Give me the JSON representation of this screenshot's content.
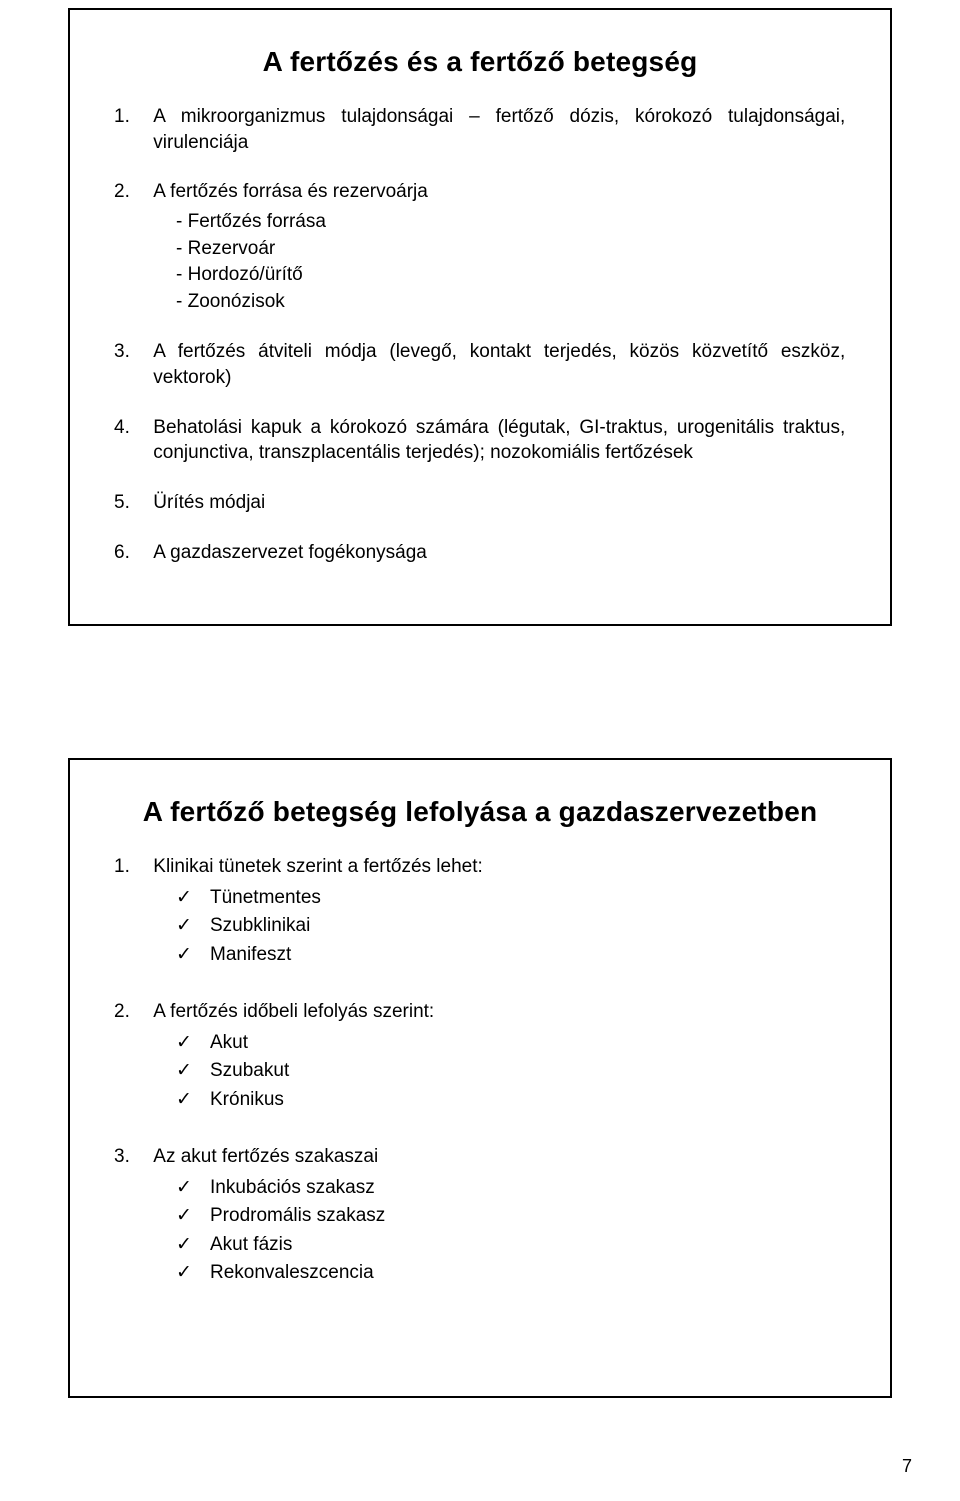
{
  "page_number": "7",
  "top": {
    "title": "A fertőzés és a fertőző betegség",
    "items": [
      {
        "num": "1.",
        "text": "A mikroorganizmus tulajdonságai – fertőző dózis, kórokozó tulajdonságai, virulenciája"
      },
      {
        "num": "2.",
        "text": "A fertőzés forrása és rezervoárja",
        "sub": [
          "Fertőzés forrása",
          "Rezervoár",
          "Hordozó/ürítő",
          "Zoonózisok"
        ]
      },
      {
        "num": "3.",
        "text": "A fertőzés átviteli módja (levegő, kontakt terjedés, közös közvetítő eszköz, vektorok)"
      },
      {
        "num": "4.",
        "text": "Behatolási kapuk a kórokozó számára (légutak, GI-traktus, urogenitális traktus, conjunctiva, transzplacentális terjedés); nozokomiális fertőzések"
      },
      {
        "num": "5.",
        "text": "Ürítés módjai"
      },
      {
        "num": "6.",
        "text": "A gazdaszervezet fogékonysága"
      }
    ]
  },
  "bottom": {
    "title": "A fertőző betegség lefolyása a gazdaszervezetben",
    "items": [
      {
        "num": "1.",
        "text": "Klinikai tünetek szerint a fertőzés lehet:",
        "sub": [
          "Tünetmentes",
          "Szubklinikai",
          "Manifeszt"
        ]
      },
      {
        "num": "2.",
        "text": "A fertőzés időbeli lefolyás szerint:",
        "sub": [
          "Akut",
          "Szubakut",
          "Krónikus"
        ]
      },
      {
        "num": "3.",
        "text": "Az akut fertőzés szakaszai",
        "sub": [
          "Inkubációs szakasz",
          "Prodromális szakasz",
          "Akut fázis",
          "Rekonvaleszcencia"
        ]
      }
    ]
  }
}
